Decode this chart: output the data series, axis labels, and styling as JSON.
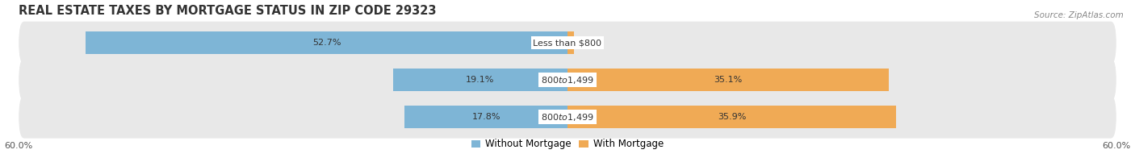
{
  "title": "REAL ESTATE TAXES BY MORTGAGE STATUS IN ZIP CODE 29323",
  "source": "Source: ZipAtlas.com",
  "rows": [
    {
      "label": "Less than $800",
      "without_mortgage": 52.7,
      "with_mortgage": 0.74
    },
    {
      "label": "$800 to $1,499",
      "without_mortgage": 19.1,
      "with_mortgage": 35.1
    },
    {
      "label": "$800 to $1,499",
      "without_mortgage": 17.8,
      "with_mortgage": 35.9
    }
  ],
  "max_val": 60.0,
  "color_without": "#7eb5d6",
  "color_with": "#f0aa55",
  "color_bg_row": "#e8e8e8",
  "title_fontsize": 10.5,
  "label_fontsize": 8.0,
  "value_fontsize": 8.0,
  "tick_fontsize": 8.0,
  "source_fontsize": 7.5,
  "legend_fontsize": 8.5,
  "bar_height": 0.62
}
